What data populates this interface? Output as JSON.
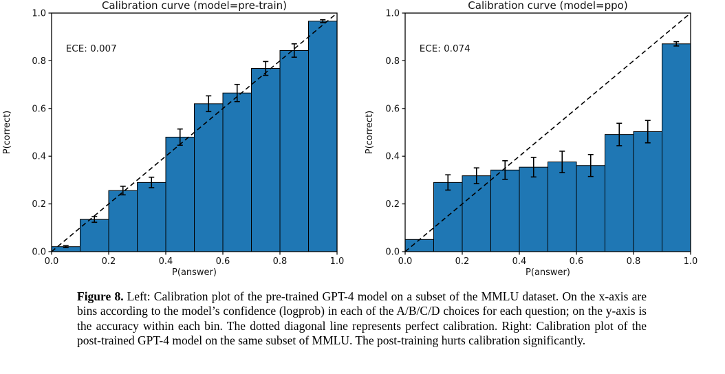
{
  "chart_data": [
    {
      "type": "bar",
      "title": "Calibration curve (model=pre-train)",
      "annotation": "ECE: 0.007",
      "xlabel": "P(answer)",
      "ylabel": "P(correct)",
      "xlim": [
        0.0,
        1.0
      ],
      "ylim": [
        0.0,
        1.0
      ],
      "xticks": [
        "0.0",
        "0.2",
        "0.4",
        "0.6",
        "0.8",
        "1.0"
      ],
      "yticks": [
        "0.0",
        "0.2",
        "0.4",
        "0.6",
        "0.8",
        "1.0"
      ],
      "grid": false,
      "legend": false,
      "bin_width": 0.1,
      "bin_centers": [
        0.05,
        0.15,
        0.25,
        0.35,
        0.45,
        0.55,
        0.65,
        0.75,
        0.85,
        0.95
      ],
      "values": [
        0.021,
        0.135,
        0.256,
        0.29,
        0.48,
        0.62,
        0.665,
        0.768,
        0.843,
        0.966
      ],
      "errors": [
        0.004,
        0.012,
        0.018,
        0.022,
        0.034,
        0.033,
        0.036,
        0.029,
        0.028,
        0.006
      ],
      "diagonal_line": "y = x dashed reference (perfect calibration)",
      "bar_color": "#1f77b4",
      "edge_color": "#000000"
    },
    {
      "type": "bar",
      "title": "Calibration curve (model=ppo)",
      "annotation": "ECE: 0.074",
      "xlabel": "P(answer)",
      "ylabel": "P(correct)",
      "xlim": [
        0.0,
        1.0
      ],
      "ylim": [
        0.0,
        1.0
      ],
      "xticks": [
        "0.0",
        "0.2",
        "0.4",
        "0.6",
        "0.8",
        "1.0"
      ],
      "yticks": [
        "0.0",
        "0.2",
        "0.4",
        "0.6",
        "0.8",
        "1.0"
      ],
      "grid": false,
      "legend": false,
      "bin_width": 0.1,
      "bin_centers": [
        0.05,
        0.15,
        0.25,
        0.35,
        0.45,
        0.55,
        0.65,
        0.75,
        0.85,
        0.95
      ],
      "values": [
        0.051,
        0.29,
        0.318,
        0.342,
        0.354,
        0.376,
        0.361,
        0.491,
        0.503,
        0.871
      ],
      "errors": [
        0.0,
        0.032,
        0.033,
        0.039,
        0.041,
        0.045,
        0.046,
        0.047,
        0.047,
        0.009
      ],
      "diagonal_line": "y = x dashed reference (perfect calibration)",
      "bar_color": "#1f77b4",
      "edge_color": "#000000"
    }
  ],
  "caption": {
    "label": "Figure 8.",
    "text": "Left: Calibration plot of the pre-trained GPT-4 model on a subset of the MMLU dataset. On the x-axis are bins according to the model’s confidence (logprob) in each of the A/B/C/D choices for each question; on the y-axis is the accuracy within each bin. The dotted diagonal line represents perfect calibration. Right: Calibration plot of the post-trained GPT-4 model on the same subset of MMLU. The post-training hurts calibration significantly."
  }
}
